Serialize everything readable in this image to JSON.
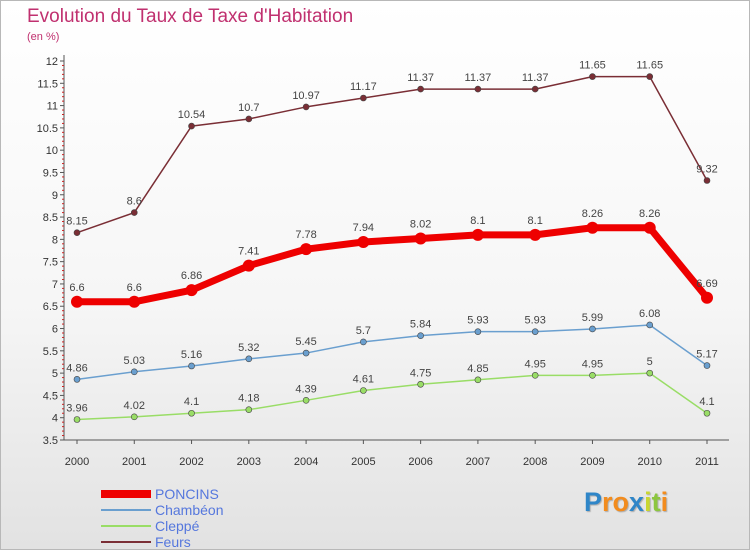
{
  "title": "Evolution du Taux de Taxe d'Habitation",
  "subtitle": "(en %)",
  "logo": {
    "letters": [
      "P",
      "r",
      "o",
      "x",
      "i",
      "t",
      "i"
    ],
    "colors": [
      "#2f86c8",
      "#f28c1e",
      "#f28c1e",
      "#2f86c8",
      "#c9d630",
      "#8cc63f",
      "#f28c1e"
    ]
  },
  "chart_data": {
    "type": "line",
    "x": [
      "2000",
      "2001",
      "2002",
      "2003",
      "2004",
      "2005",
      "2006",
      "2007",
      "2008",
      "2009",
      "2010",
      "2011"
    ],
    "ylim": [
      3.5,
      12
    ],
    "yticks": [
      "3.5",
      "4",
      "4.5",
      "5",
      "5.5",
      "6",
      "6.5",
      "7",
      "7.5",
      "8",
      "8.5",
      "9",
      "9.5",
      "10",
      "10.5",
      "11",
      "11.5",
      "12"
    ],
    "grid": false,
    "legend": "bottom-left",
    "series": [
      {
        "name": "PONCINS",
        "color": "#ee0000",
        "values": [
          6.6,
          6.6,
          6.86,
          7.41,
          7.78,
          7.94,
          8.02,
          8.1,
          8.1,
          8.26,
          8.26,
          6.69
        ],
        "labels": [
          "6.6",
          "6.6",
          "6.86",
          "7.41",
          "7.78",
          "7.94",
          "8.02",
          "8.1",
          "8.1",
          "8.26",
          "8.26",
          "6.69"
        ]
      },
      {
        "name": "Chambéon",
        "color": "#6a9fcf",
        "values": [
          4.86,
          5.03,
          5.16,
          5.32,
          5.45,
          5.7,
          5.84,
          5.93,
          5.93,
          5.99,
          6.08,
          5.17
        ],
        "labels": [
          "4.86",
          "5.03",
          "5.16",
          "5.32",
          "5.45",
          "5.7",
          "5.84",
          "5.93",
          "5.93",
          "5.99",
          "6.08",
          "5.17"
        ]
      },
      {
        "name": "Cleppé",
        "color": "#99dd66",
        "values": [
          3.96,
          4.02,
          4.1,
          4.18,
          4.39,
          4.61,
          4.75,
          4.85,
          4.95,
          4.95,
          5,
          4.1
        ],
        "labels": [
          "3.96",
          "4.02",
          "4.1",
          "4.18",
          "4.39",
          "4.61",
          "4.75",
          "4.85",
          "4.95",
          "4.95",
          "5",
          "4.1"
        ]
      },
      {
        "name": "Feurs",
        "color": "#7a2e35",
        "values": [
          8.15,
          8.6,
          10.54,
          10.7,
          10.97,
          11.17,
          11.37,
          11.37,
          11.37,
          11.65,
          11.65,
          9.32
        ],
        "labels": [
          "8.15",
          "8.6",
          "10.54",
          "10.7",
          "10.97",
          "11.17",
          "11.37",
          "11.37",
          "11.37",
          "11.65",
          "11.65",
          "9.32"
        ]
      }
    ]
  }
}
